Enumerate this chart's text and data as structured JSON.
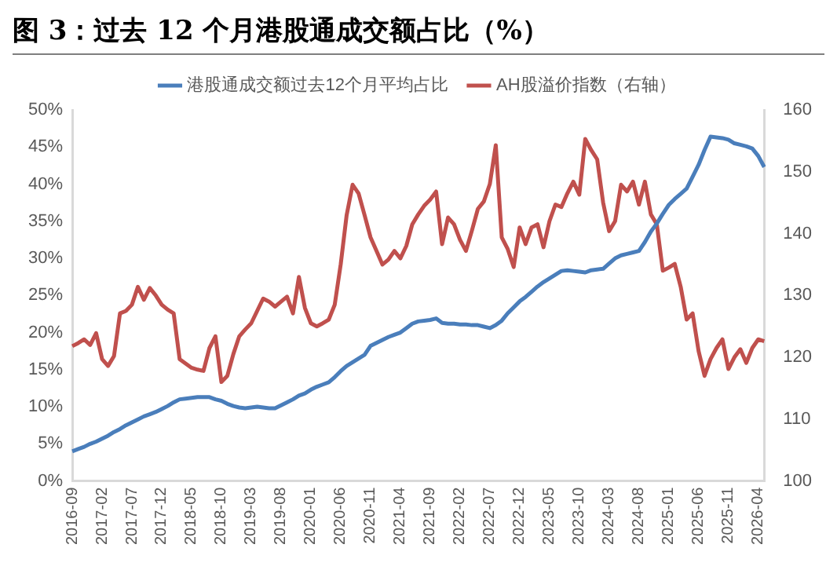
{
  "chart_data": {
    "type": "line",
    "title": "图 3：过去 12 个月港股通成交额占比（%）",
    "categories": [
      "2016-09",
      null,
      null,
      null,
      null,
      "2017-02",
      null,
      null,
      null,
      null,
      "2017-07",
      null,
      null,
      null,
      null,
      "2017-12",
      null,
      null,
      null,
      null,
      "2018-05",
      null,
      null,
      null,
      null,
      "2018-10",
      null,
      null,
      null,
      null,
      "2019-03",
      null,
      null,
      null,
      null,
      "2019-08",
      null,
      null,
      null,
      null,
      "2020-01",
      null,
      null,
      null,
      null,
      "2020-06",
      null,
      null,
      null,
      null,
      "2020-11",
      null,
      null,
      null,
      null,
      "2021-04",
      null,
      null,
      null,
      null,
      "2021-09",
      null,
      null,
      null,
      null,
      "2022-02",
      null,
      null,
      null,
      null,
      "2022-07",
      null,
      null,
      null,
      null,
      "2022-12",
      null,
      null,
      null,
      null,
      "2023-05",
      null,
      null,
      null,
      null,
      "2023-10",
      null,
      null,
      null,
      null,
      "2024-03",
      null,
      null,
      null,
      null,
      "2024-08",
      null,
      null,
      null,
      null,
      "2025-01",
      null,
      null,
      null,
      null,
      "2025-06",
      null,
      null,
      null,
      null,
      "2025-11",
      null,
      null,
      null,
      null,
      "2026-04",
      null
    ],
    "series": [
      {
        "name": "港股通成交额过去12个月平均占比",
        "color": "#4a7ebb",
        "values": [
          4.0,
          4.3,
          4.6,
          5.0,
          5.3,
          5.7,
          6.1,
          6.6,
          7.0,
          7.5,
          7.9,
          8.3,
          8.7,
          9.0,
          9.3,
          9.7,
          10.1,
          10.6,
          11.0,
          11.1,
          11.2,
          11.3,
          11.3,
          11.3,
          11.0,
          10.8,
          10.4,
          10.1,
          9.9,
          9.8,
          9.9,
          10.0,
          9.9,
          9.8,
          9.8,
          10.2,
          10.6,
          11.0,
          11.5,
          11.8,
          12.3,
          12.7,
          13.0,
          13.3,
          14.0,
          14.8,
          15.5,
          16.0,
          16.5,
          17.0,
          18.2,
          18.6,
          19.0,
          19.4,
          19.7,
          20.0,
          20.6,
          21.2,
          21.5,
          21.6,
          21.7,
          21.9,
          21.3,
          21.2,
          21.2,
          21.1,
          21.1,
          21.0,
          21.0,
          20.8,
          20.6,
          21.0,
          21.6,
          22.6,
          23.4,
          24.2,
          24.8,
          25.5,
          26.2,
          26.8,
          27.3,
          27.8,
          28.3,
          28.4,
          28.3,
          28.2,
          28.1,
          28.4,
          28.5,
          28.6,
          29.3,
          30.0,
          30.4,
          30.6,
          30.8,
          31.0,
          32.2,
          33.6,
          34.7,
          36.0,
          37.2,
          38.0,
          38.7,
          39.4,
          41.0,
          42.6,
          44.6,
          46.4,
          46.3,
          46.2,
          46.0,
          45.5,
          45.3,
          45.1,
          44.8,
          43.8,
          42.3
        ]
      },
      {
        "name": "AH股溢价指数（右轴）",
        "color": "#c0504d",
        "axis": "y2",
        "values": [
          121.8,
          122.3,
          122.9,
          122.0,
          123.9,
          119.7,
          118.6,
          120.2,
          127.1,
          127.5,
          128.5,
          131.4,
          129.3,
          131.2,
          130.0,
          128.5,
          127.7,
          127.1,
          119.7,
          119.0,
          118.3,
          118.0,
          117.8,
          121.5,
          123.4,
          116.0,
          117.0,
          120.5,
          123.4,
          124.5,
          125.5,
          127.5,
          129.5,
          129.0,
          128.2,
          129.0,
          129.8,
          127.1,
          133.0,
          128.0,
          125.5,
          125.0,
          125.5,
          126.1,
          128.5,
          135.0,
          143.0,
          147.9,
          146.5,
          143.0,
          139.4,
          137.2,
          135.0,
          135.8,
          137.2,
          136.0,
          138.0,
          141.5,
          143.1,
          144.5,
          145.5,
          146.8,
          138.3,
          142.6,
          141.5,
          139.0,
          137.2,
          140.5,
          144.0,
          145.2,
          148.0,
          154.3,
          139.4,
          137.5,
          134.6,
          141.0,
          138.3,
          141.0,
          141.5,
          137.8,
          142.0,
          144.7,
          144.3,
          146.5,
          148.4,
          146.3,
          155.3,
          153.5,
          152.0,
          145.0,
          140.4,
          142.0,
          147.9,
          146.8,
          148.4,
          144.7,
          148.4,
          143.1,
          141.5,
          134.0,
          134.5,
          135.1,
          131.4,
          126.1,
          127.1,
          121.0,
          117.0,
          119.7,
          121.5,
          122.9,
          118.1,
          120.0,
          121.3,
          119.1,
          121.5,
          122.9,
          122.6
        ]
      }
    ],
    "ylim": [
      0,
      50
    ],
    "yticks": [
      {
        "value": 0,
        "label": "0%"
      },
      {
        "value": 5,
        "label": "5%"
      },
      {
        "value": 10,
        "label": "10%"
      },
      {
        "value": 15,
        "label": "15%"
      },
      {
        "value": 20,
        "label": "20%"
      },
      {
        "value": 25,
        "label": "25%"
      },
      {
        "value": 30,
        "label": "30%"
      },
      {
        "value": 35,
        "label": "35%"
      },
      {
        "value": 40,
        "label": "40%"
      },
      {
        "value": 45,
        "label": "45%"
      },
      {
        "value": 50,
        "label": "50%"
      }
    ],
    "y2lim": [
      100,
      160
    ],
    "y2ticks": [
      100,
      110,
      120,
      130,
      140,
      150,
      160
    ],
    "legend": "top"
  }
}
